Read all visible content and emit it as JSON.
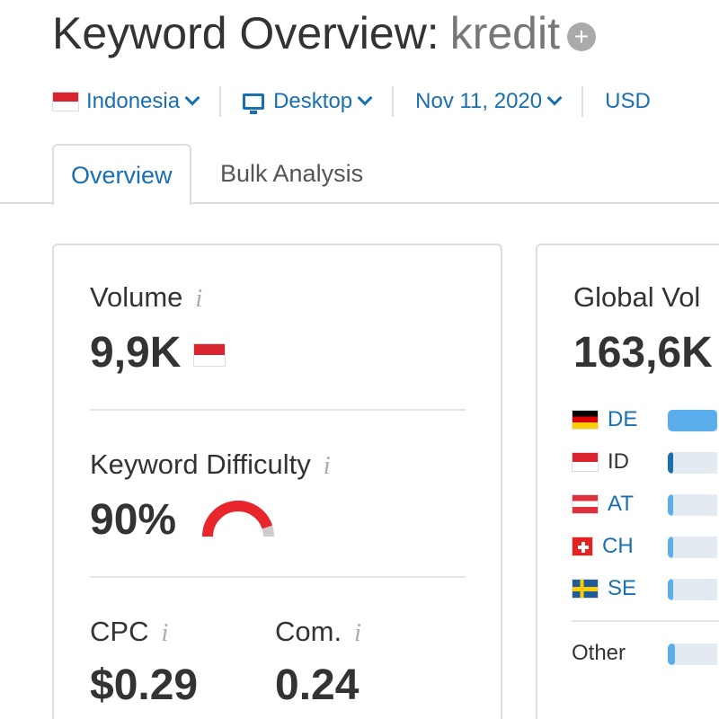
{
  "header": {
    "title": "Keyword Overview:",
    "keyword": "kredit",
    "add_icon": "plus-circle-icon"
  },
  "filters": {
    "country": "Indonesia",
    "device": "Desktop",
    "date": "Nov 11, 2020",
    "currency": "USD"
  },
  "tabs": [
    {
      "label": "Overview",
      "active": true
    },
    {
      "label": "Bulk Analysis",
      "active": false
    }
  ],
  "metrics": {
    "volume": {
      "label": "Volume",
      "value": "9,9K"
    },
    "kd": {
      "label": "Keyword Difficulty",
      "value": "90%",
      "percent": 90,
      "color": "#e8262b"
    },
    "cpc": {
      "label": "CPC",
      "value": "$0.29"
    },
    "com": {
      "label": "Com.",
      "value": "0.24"
    }
  },
  "global": {
    "label": "Global Vol",
    "value": "163,6K",
    "countries": [
      {
        "code": "DE",
        "share": 1.0,
        "color": "#5aaeeb"
      },
      {
        "code": "ID",
        "share": 0.06,
        "color": "#1a6fb0"
      },
      {
        "code": "AT",
        "share": 0.05,
        "color": "#5aaeeb"
      },
      {
        "code": "CH",
        "share": 0.03,
        "color": "#5aaeeb"
      },
      {
        "code": "SE",
        "share": 0.03,
        "color": "#5aaeeb"
      }
    ],
    "other": {
      "label": "Other",
      "share": 0.15
    }
  }
}
